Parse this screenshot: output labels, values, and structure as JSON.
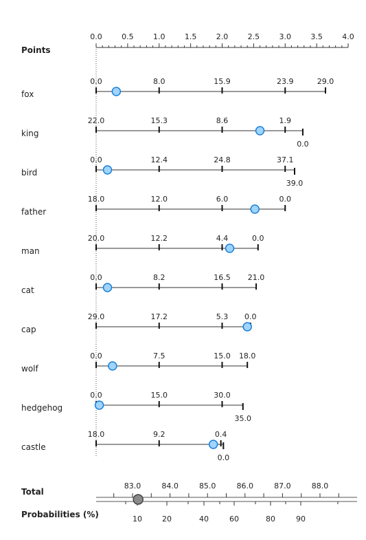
{
  "chart_data": {
    "type": "nomogram",
    "points_axis": {
      "label": "Points",
      "ticks": [
        "0.0",
        "0.5",
        "1.0",
        "1.5",
        "2.0",
        "2.5",
        "3.0",
        "3.5",
        "4.0"
      ],
      "range": [
        0,
        4
      ]
    },
    "variables": [
      {
        "name": "fox",
        "ticks": [
          {
            "label": "0.0",
            "points": 0
          },
          {
            "label": "8.0",
            "points": 1
          },
          {
            "label": "15.9",
            "points": 2
          },
          {
            "label": "23.9",
            "points": 3
          },
          {
            "label": "29.0",
            "points": 3.64
          }
        ],
        "marker_points": 0.32
      },
      {
        "name": "king",
        "ticks": [
          {
            "label": "22.0",
            "points": 0
          },
          {
            "label": "15.3",
            "points": 1
          },
          {
            "label": "8.6",
            "points": 2
          },
          {
            "label": "1.9",
            "points": 3
          },
          {
            "label": "0.0",
            "points": 3.28,
            "below": true
          }
        ],
        "marker_points": 2.6
      },
      {
        "name": "bird",
        "ticks": [
          {
            "label": "0.0",
            "points": 0
          },
          {
            "label": "12.4",
            "points": 1
          },
          {
            "label": "24.8",
            "points": 2
          },
          {
            "label": "37.1",
            "points": 3
          },
          {
            "label": "39.0",
            "points": 3.15,
            "below": true
          }
        ],
        "marker_points": 0.18
      },
      {
        "name": "father",
        "ticks": [
          {
            "label": "18.0",
            "points": 0
          },
          {
            "label": "12.0",
            "points": 1
          },
          {
            "label": "6.0",
            "points": 2
          },
          {
            "label": "0.0",
            "points": 3
          }
        ],
        "marker_points": 2.52
      },
      {
        "name": "man",
        "ticks": [
          {
            "label": "20.0",
            "points": 0
          },
          {
            "label": "12.2",
            "points": 1
          },
          {
            "label": "4.4",
            "points": 2
          },
          {
            "label": "0.0",
            "points": 2.57
          }
        ],
        "marker_points": 2.12
      },
      {
        "name": "cat",
        "ticks": [
          {
            "label": "0.0",
            "points": 0
          },
          {
            "label": "8.2",
            "points": 1
          },
          {
            "label": "16.5",
            "points": 2
          },
          {
            "label": "21.0",
            "points": 2.54
          }
        ],
        "marker_points": 0.18
      },
      {
        "name": "cap",
        "ticks": [
          {
            "label": "29.0",
            "points": 0
          },
          {
            "label": "17.2",
            "points": 1
          },
          {
            "label": "5.3",
            "points": 2
          },
          {
            "label": "0.0",
            "points": 2.45
          }
        ],
        "marker_points": 2.4
      },
      {
        "name": "wolf",
        "ticks": [
          {
            "label": "0.0",
            "points": 0
          },
          {
            "label": "7.5",
            "points": 1
          },
          {
            "label": "15.0",
            "points": 2
          },
          {
            "label": "18.0",
            "points": 2.4
          }
        ],
        "marker_points": 0.26
      },
      {
        "name": "hedgehog",
        "ticks": [
          {
            "label": "0.0",
            "points": 0
          },
          {
            "label": "15.0",
            "points": 1
          },
          {
            "label": "30.0",
            "points": 2
          },
          {
            "label": "35.0",
            "points": 2.33,
            "below": true
          }
        ],
        "marker_points": 0.05
      },
      {
        "name": "castle",
        "ticks": [
          {
            "label": "18.0",
            "points": 0
          },
          {
            "label": "9.2",
            "points": 1
          },
          {
            "label": "0.4",
            "points": 1.98
          },
          {
            "label": "0.0",
            "points": 2.02,
            "below": true
          }
        ],
        "marker_points": 1.86
      }
    ],
    "total_axis": {
      "label": "Total",
      "ticks": [
        "83.0",
        "84.0",
        "85.0",
        "86.0",
        "87.0",
        "88.0"
      ],
      "values": [
        83,
        84,
        85,
        86,
        87,
        88
      ],
      "marker_total": 83.15
    },
    "probability_axis": {
      "label": "Probabilities (%)",
      "ticks": [
        "10",
        "20",
        "40",
        "60",
        "80",
        "90"
      ],
      "values": [
        10,
        20,
        40,
        60,
        80,
        90
      ]
    }
  }
}
